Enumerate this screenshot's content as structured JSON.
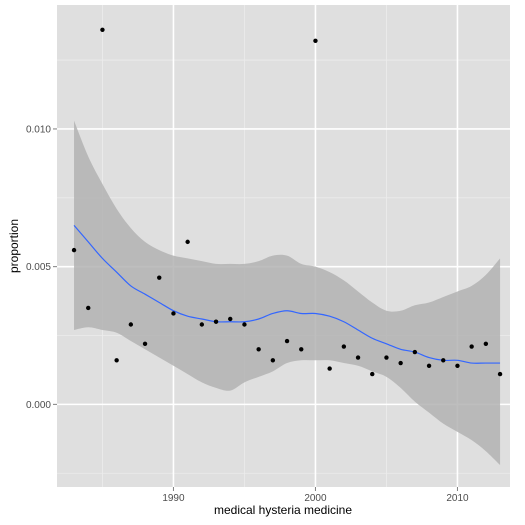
{
  "chart_data": {
    "type": "scatter",
    "xlabel": "medical hysteria medicine",
    "ylabel": "proportion",
    "xlim": [
      1981.8,
      2013.7
    ],
    "ylim": [
      -0.003,
      0.0145
    ],
    "x_ticks": [
      1990,
      2000,
      2010
    ],
    "x_tick_labels": [
      "1990",
      "2000",
      "2010"
    ],
    "y_ticks": [
      0.0,
      0.005,
      0.01
    ],
    "y_tick_labels": [
      "0.000",
      "0.005",
      "0.010"
    ],
    "grid": true,
    "colors": {
      "panel": "#dfdfdf",
      "grid_major": "#ffffff",
      "grid_minor": "#ececec",
      "points": "#000000",
      "smooth_line": "#3366ff",
      "ribbon": "#b3b3b3"
    },
    "points": {
      "x": [
        1983,
        1984,
        1985,
        1986,
        1987,
        1988,
        1989,
        1990,
        1991,
        1992,
        1993,
        1994,
        1995,
        1996,
        1997,
        1998,
        1999,
        2000,
        2001,
        2002,
        2003,
        2004,
        2005,
        2006,
        2007,
        2008,
        2009,
        2010,
        2011,
        2012,
        2013
      ],
      "y": [
        0.0056,
        0.0035,
        0.0136,
        0.0016,
        0.0029,
        0.0022,
        0.0046,
        0.0033,
        0.0059,
        0.0029,
        0.003,
        0.0031,
        0.0029,
        0.002,
        0.0016,
        0.0023,
        0.002,
        0.0132,
        0.0013,
        0.0021,
        0.0017,
        0.0011,
        0.0017,
        0.0015,
        0.0019,
        0.0014,
        0.0016,
        0.0014,
        0.0021,
        0.0022,
        0.0011
      ]
    },
    "smooth": {
      "x": [
        1983,
        1984,
        1985,
        1986,
        1987,
        1988,
        1989,
        1990,
        1991,
        1992,
        1993,
        1994,
        1995,
        1996,
        1997,
        1998,
        1999,
        2000,
        2001,
        2002,
        2003,
        2004,
        2005,
        2006,
        2007,
        2008,
        2009,
        2010,
        2011,
        2012,
        2013
      ],
      "y": [
        0.0065,
        0.0059,
        0.0053,
        0.0048,
        0.0043,
        0.004,
        0.0037,
        0.0034,
        0.0032,
        0.0031,
        0.003,
        0.003,
        0.003,
        0.0031,
        0.0033,
        0.0034,
        0.0033,
        0.0033,
        0.0032,
        0.003,
        0.0027,
        0.0024,
        0.0022,
        0.002,
        0.0019,
        0.0017,
        0.0016,
        0.0016,
        0.0015,
        0.0015,
        0.0015
      ],
      "lower": [
        0.0027,
        0.0028,
        0.0027,
        0.0026,
        0.0023,
        0.002,
        0.0017,
        0.0014,
        0.0011,
        0.0008,
        0.0006,
        0.0005,
        0.0008,
        0.001,
        0.0012,
        0.0015,
        0.0016,
        0.0016,
        0.0016,
        0.0015,
        0.0014,
        0.0012,
        0.001,
        0.0006,
        0.0001,
        -0.0003,
        -0.0007,
        -0.001,
        -0.0013,
        -0.0017,
        -0.0022
      ],
      "upper": [
        0.0103,
        0.009,
        0.008,
        0.0071,
        0.0064,
        0.0059,
        0.0056,
        0.0054,
        0.0053,
        0.0052,
        0.0051,
        0.0051,
        0.0051,
        0.0052,
        0.0054,
        0.0054,
        0.0051,
        0.005,
        0.0048,
        0.0045,
        0.0041,
        0.0037,
        0.0034,
        0.0034,
        0.0036,
        0.0037,
        0.0039,
        0.0041,
        0.0043,
        0.0047,
        0.0053
      ]
    }
  }
}
